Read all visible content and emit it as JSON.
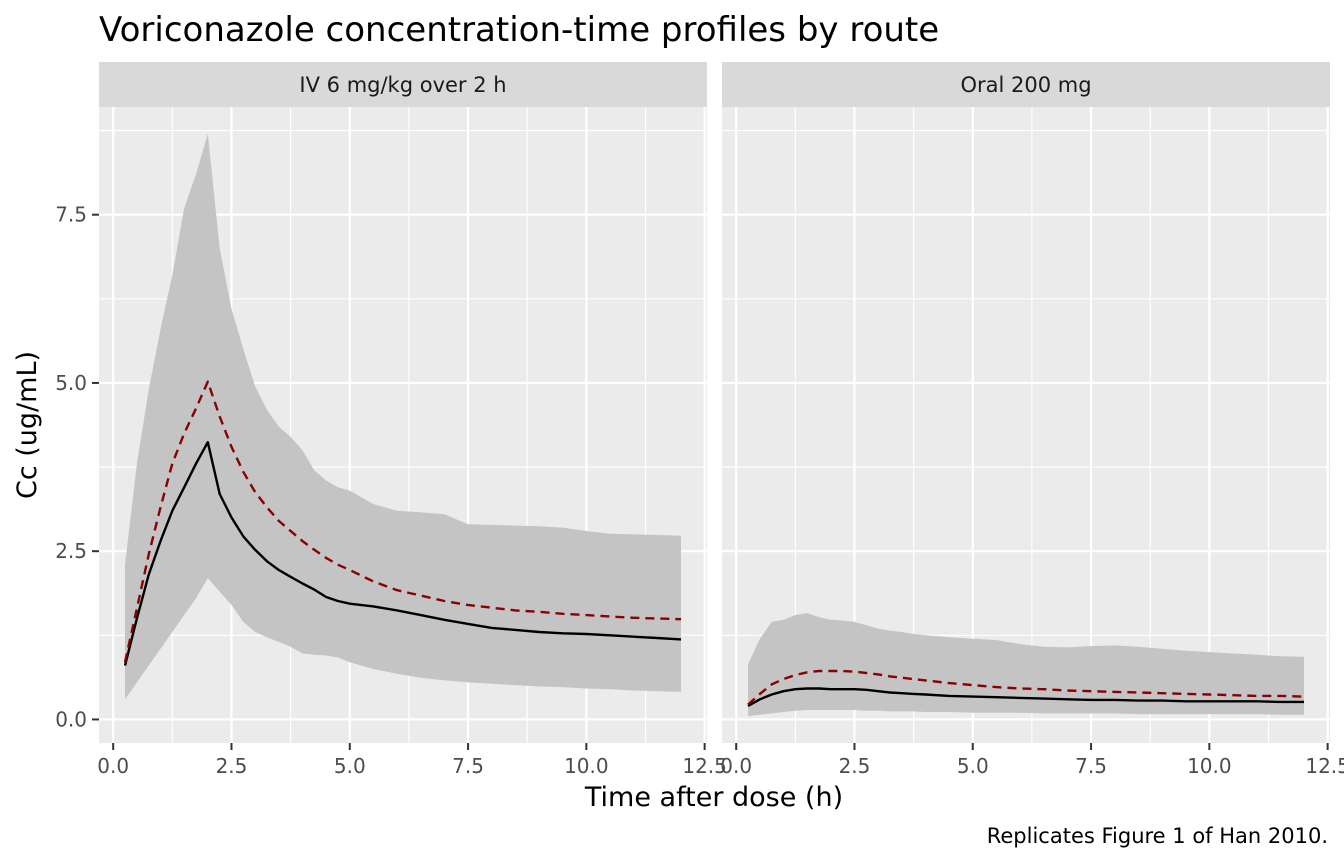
{
  "chart_data": {
    "type": "line",
    "title": "Voriconazole concentration-time profiles by route",
    "xlabel": "Time after dose (h)",
    "ylabel": "Cc (ug/mL)",
    "caption": "Replicates Figure 1 of Han 2010.",
    "xlim": [
      -0.3,
      12.55
    ],
    "ylim": [
      -0.35,
      9.1
    ],
    "x_ticks": [
      0,
      2.5,
      5,
      7.5,
      10,
      12.5
    ],
    "x_tick_labels": [
      "0.0",
      "2.5",
      "5.0",
      "7.5",
      "10.0",
      "12.5"
    ],
    "y_ticks": [
      0,
      2.5,
      5,
      7.5
    ],
    "y_tick_labels": [
      "0.0",
      "2.5",
      "5.0",
      "7.5"
    ],
    "grid": true,
    "colors": {
      "panel_bg": "#ebebeb",
      "strip_bg": "#d9d9d9",
      "grid": "#ffffff",
      "ribbon": "#c4c4c4",
      "median_line": "#000000",
      "mean_line": "#8b0000"
    },
    "panels": [
      {
        "label": "IV 6 mg/kg over 2 h",
        "x": [
          0.25,
          0.5,
          0.75,
          1.0,
          1.25,
          1.5,
          1.75,
          2.0,
          2.25,
          2.5,
          2.75,
          3.0,
          3.25,
          3.5,
          3.75,
          4.0,
          4.25,
          4.5,
          4.75,
          5.0,
          5.5,
          6.0,
          6.5,
          7.0,
          7.5,
          8.0,
          8.5,
          9.0,
          9.5,
          10.0,
          10.5,
          11.0,
          11.5,
          12.0
        ],
        "ribbon_upper": [
          2.3,
          3.8,
          4.9,
          5.8,
          6.6,
          7.6,
          8.1,
          8.7,
          7.0,
          6.1,
          5.5,
          4.95,
          4.6,
          4.35,
          4.2,
          4.0,
          3.7,
          3.55,
          3.45,
          3.4,
          3.2,
          3.1,
          3.08,
          3.05,
          2.9,
          2.89,
          2.88,
          2.87,
          2.85,
          2.8,
          2.76,
          2.75,
          2.74,
          2.73
        ],
        "ribbon_lower": [
          0.3,
          0.55,
          0.8,
          1.05,
          1.3,
          1.55,
          1.8,
          2.1,
          1.9,
          1.7,
          1.45,
          1.3,
          1.22,
          1.15,
          1.08,
          0.98,
          0.96,
          0.95,
          0.92,
          0.85,
          0.75,
          0.68,
          0.62,
          0.58,
          0.55,
          0.53,
          0.51,
          0.49,
          0.48,
          0.46,
          0.45,
          0.43,
          0.42,
          0.41
        ],
        "median": [
          0.8,
          1.5,
          2.15,
          2.65,
          3.1,
          3.45,
          3.8,
          4.12,
          3.35,
          3.0,
          2.72,
          2.52,
          2.35,
          2.22,
          2.12,
          2.02,
          1.93,
          1.82,
          1.76,
          1.72,
          1.68,
          1.62,
          1.55,
          1.48,
          1.42,
          1.36,
          1.33,
          1.3,
          1.28,
          1.27,
          1.25,
          1.23,
          1.21,
          1.19
        ],
        "mean": [
          0.85,
          1.65,
          2.45,
          3.15,
          3.8,
          4.25,
          4.62,
          5.02,
          4.5,
          4.05,
          3.68,
          3.38,
          3.15,
          2.95,
          2.8,
          2.65,
          2.52,
          2.4,
          2.3,
          2.22,
          2.05,
          1.92,
          1.84,
          1.76,
          1.7,
          1.66,
          1.62,
          1.6,
          1.57,
          1.55,
          1.53,
          1.51,
          1.5,
          1.49
        ]
      },
      {
        "label": "Oral 200 mg",
        "x": [
          0.25,
          0.5,
          0.75,
          1.0,
          1.25,
          1.5,
          1.75,
          2.0,
          2.25,
          2.5,
          2.75,
          3.0,
          3.25,
          3.5,
          3.75,
          4.0,
          4.5,
          5.0,
          5.5,
          6.0,
          6.5,
          7.0,
          7.5,
          8.0,
          8.5,
          9.0,
          9.5,
          10.0,
          10.5,
          11.0,
          11.5,
          12.0
        ],
        "ribbon_upper": [
          0.82,
          1.2,
          1.45,
          1.48,
          1.55,
          1.58,
          1.52,
          1.48,
          1.47,
          1.45,
          1.4,
          1.35,
          1.32,
          1.3,
          1.27,
          1.25,
          1.22,
          1.2,
          1.18,
          1.12,
          1.08,
          1.07,
          1.09,
          1.1,
          1.08,
          1.05,
          1.02,
          1.0,
          0.98,
          0.96,
          0.94,
          0.93
        ],
        "ribbon_lower": [
          0.05,
          0.07,
          0.09,
          0.11,
          0.13,
          0.14,
          0.14,
          0.14,
          0.14,
          0.14,
          0.13,
          0.13,
          0.12,
          0.12,
          0.12,
          0.11,
          0.11,
          0.1,
          0.1,
          0.1,
          0.09,
          0.09,
          0.09,
          0.09,
          0.08,
          0.08,
          0.08,
          0.08,
          0.08,
          0.08,
          0.07,
          0.07
        ],
        "median": [
          0.2,
          0.3,
          0.37,
          0.42,
          0.45,
          0.46,
          0.46,
          0.45,
          0.45,
          0.45,
          0.44,
          0.42,
          0.4,
          0.39,
          0.38,
          0.37,
          0.35,
          0.34,
          0.33,
          0.32,
          0.31,
          0.3,
          0.29,
          0.29,
          0.28,
          0.28,
          0.27,
          0.27,
          0.27,
          0.27,
          0.26,
          0.26
        ],
        "mean": [
          0.22,
          0.38,
          0.52,
          0.6,
          0.66,
          0.7,
          0.72,
          0.72,
          0.72,
          0.71,
          0.69,
          0.67,
          0.64,
          0.62,
          0.6,
          0.58,
          0.54,
          0.51,
          0.48,
          0.46,
          0.45,
          0.43,
          0.42,
          0.41,
          0.4,
          0.39,
          0.38,
          0.37,
          0.36,
          0.35,
          0.35,
          0.34
        ]
      }
    ]
  }
}
